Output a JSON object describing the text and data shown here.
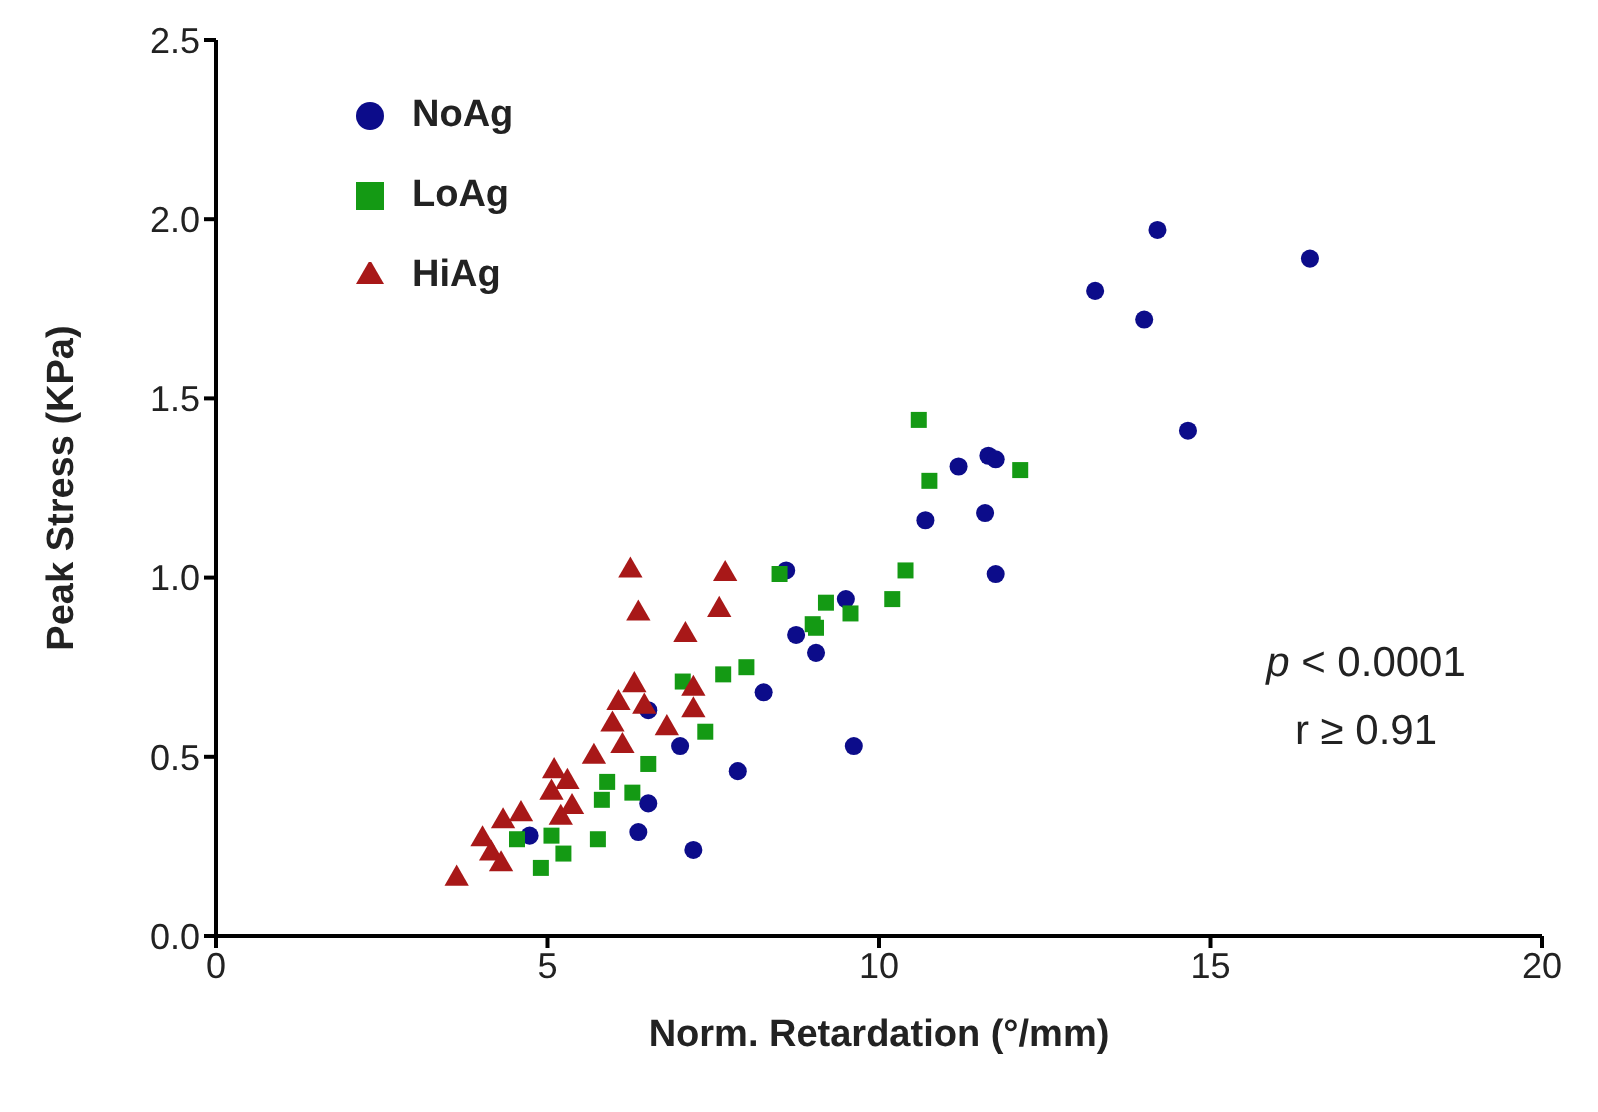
{
  "chart_data": {
    "type": "scatter",
    "xlabel": "Norm. Retardation (°/mm)",
    "ylabel": "Peak Stress (KPa)",
    "xlim": [
      0,
      20
    ],
    "xticks": [
      0,
      5,
      10,
      15,
      20
    ],
    "ylim": [
      0,
      2.5
    ],
    "yticks": [
      {
        "value": 0,
        "label": "0.0"
      },
      {
        "value": 0.5,
        "label": "0.5"
      },
      {
        "value": 1,
        "label": "1.0"
      },
      {
        "value": 1.5,
        "label": "1.5"
      },
      {
        "value": 2,
        "label": "2.0"
      },
      {
        "value": 2.5,
        "label": "2.5"
      }
    ],
    "grid": false,
    "legend": "top left",
    "annotations": [
      "p < 0.0001",
      "r ≥ 0.91"
    ],
    "series": [
      {
        "name": "NoAg",
        "color": "#0c0c8a",
        "marker": "circle",
        "x": [
          4.73,
          6.37,
          6.52,
          6.52,
          7.0,
          7.2,
          7.87,
          8.26,
          8.6,
          8.75,
          9.05,
          9.5,
          9.62,
          10.7,
          11.2,
          11.6,
          11.65,
          11.76,
          11.76,
          13.26,
          14.0,
          14.2,
          14.66,
          16.5
        ],
        "values": [
          0.28,
          0.29,
          0.37,
          0.63,
          0.53,
          0.24,
          0.46,
          0.68,
          1.02,
          0.84,
          0.79,
          0.94,
          0.53,
          1.16,
          1.31,
          1.18,
          1.34,
          1.33,
          1.01,
          1.8,
          1.72,
          1.97,
          1.41,
          1.89
        ]
      },
      {
        "name": "LoAg",
        "color": "#149a14",
        "marker": "square",
        "x": [
          4.54,
          4.9,
          5.06,
          5.24,
          5.76,
          5.82,
          5.9,
          6.28,
          6.52,
          7.04,
          7.38,
          7.65,
          8.0,
          8.5,
          9.0,
          9.05,
          9.2,
          9.57,
          10.2,
          10.4,
          10.6,
          10.76,
          12.13
        ],
        "values": [
          0.27,
          0.19,
          0.28,
          0.23,
          0.27,
          0.38,
          0.43,
          0.4,
          0.48,
          0.71,
          0.57,
          0.73,
          0.75,
          1.01,
          0.87,
          0.86,
          0.93,
          0.9,
          0.94,
          1.02,
          1.44,
          1.27,
          1.3
        ]
      },
      {
        "name": "HiAg",
        "color": "#a81818",
        "marker": "triangle",
        "x": [
          3.63,
          4.02,
          4.15,
          4.3,
          4.33,
          4.6,
          5.06,
          5.1,
          5.2,
          5.3,
          5.37,
          5.7,
          5.98,
          6.07,
          6.13,
          6.25,
          6.31,
          6.37,
          6.46,
          6.8,
          7.08,
          7.2,
          7.2,
          7.59,
          7.68
        ],
        "values": [
          0.16,
          0.27,
          0.23,
          0.2,
          0.32,
          0.34,
          0.4,
          0.46,
          0.33,
          0.43,
          0.36,
          0.5,
          0.59,
          0.65,
          0.53,
          1.02,
          0.7,
          0.9,
          0.64,
          0.58,
          0.84,
          0.69,
          0.63,
          0.91,
          1.01
        ]
      }
    ]
  }
}
